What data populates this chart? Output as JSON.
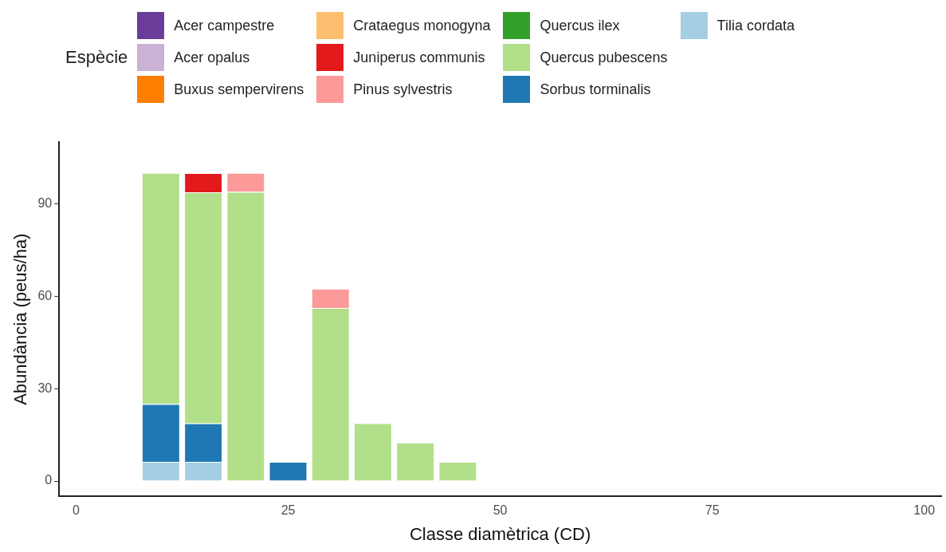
{
  "chart_data": {
    "type": "bar",
    "stacked": true,
    "xlabel": "Classe diamètrica (CD)",
    "ylabel": "Abundància (peus/ha)",
    "legend_title": "Espècie",
    "legend": "top",
    "x": [
      10,
      15,
      20,
      25,
      30,
      35,
      40,
      45
    ],
    "xlim": [
      -2,
      102
    ],
    "xticks": [
      0,
      25,
      50,
      75,
      100
    ],
    "ylim": [
      -5,
      110
    ],
    "yticks": [
      0,
      30,
      60,
      90
    ],
    "grid": false,
    "series": [
      {
        "name": "Tilia cordata",
        "color": "#a6cee3",
        "values": [
          6.2,
          6.2,
          null,
          null,
          null,
          null,
          null,
          null
        ]
      },
      {
        "name": "Sorbus torminalis",
        "color": "#1f78b4",
        "values": [
          18.8,
          12.5,
          null,
          6.2,
          null,
          null,
          null,
          null
        ]
      },
      {
        "name": "Quercus pubescens",
        "color": "#b2df8a",
        "values": [
          75,
          75,
          93.8,
          null,
          56.2,
          18.8,
          12.5,
          6.2
        ]
      },
      {
        "name": "Quercus ilex",
        "color": "#33a02c",
        "values": [
          null,
          null,
          null,
          null,
          null,
          null,
          null,
          null
        ]
      },
      {
        "name": "Pinus sylvestris",
        "color": "#fb9a99",
        "values": [
          null,
          null,
          6.2,
          null,
          6.2,
          null,
          null,
          null
        ]
      },
      {
        "name": "Juniperus communis",
        "color": "#e31a1c",
        "values": [
          null,
          6.2,
          null,
          null,
          null,
          null,
          null,
          null
        ]
      },
      {
        "name": "Crataegus monogyna",
        "color": "#fdbf6f",
        "values": [
          null,
          null,
          null,
          null,
          null,
          null,
          null,
          null
        ]
      },
      {
        "name": "Buxus sempervirens",
        "color": "#ff7f00",
        "values": [
          null,
          null,
          null,
          null,
          null,
          null,
          null,
          null
        ]
      },
      {
        "name": "Acer opalus",
        "color": "#cab2d6",
        "values": [
          null,
          null,
          null,
          null,
          null,
          null,
          null,
          null
        ]
      },
      {
        "name": "Acer campestre",
        "color": "#6a3d9a",
        "values": [
          null,
          null,
          null,
          null,
          null,
          null,
          null,
          null
        ]
      }
    ]
  }
}
